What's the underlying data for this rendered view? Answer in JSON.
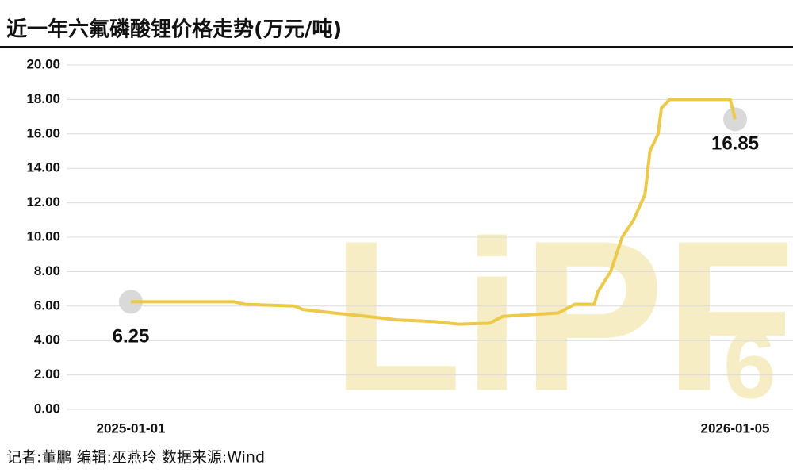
{
  "chart_data": {
    "type": "line",
    "title": "近一年六氟磷酸锂价格走势(万元/吨)",
    "x": [
      "2025-01-01",
      "2025-03-05",
      "2025-03-12",
      "2025-04-11",
      "2025-04-16",
      "2025-05-05",
      "2025-05-25",
      "2025-06-13",
      "2025-07-05",
      "2025-07-20",
      "2025-08-08",
      "2025-08-16",
      "2025-09-19",
      "2025-09-29",
      "2025-10-11",
      "2025-10-13",
      "2025-10-21",
      "2025-10-28",
      "2025-11-04",
      "2025-11-11",
      "2025-11-14",
      "2025-11-19",
      "2025-11-21",
      "2025-11-26",
      "2026-01-02",
      "2026-01-05"
    ],
    "series": [
      {
        "name": "六氟磷酸锂",
        "color": "#ecc94b",
        "values": [
          6.25,
          6.25,
          6.1,
          6.0,
          5.8,
          5.6,
          5.4,
          5.2,
          5.1,
          4.95,
          5.0,
          5.4,
          5.6,
          6.1,
          6.1,
          6.8,
          8.0,
          10.0,
          11.0,
          12.5,
          15.0,
          16.0,
          17.5,
          18.0,
          18.0,
          16.85
        ],
        "value_labels": {
          "0": "6.25",
          "25": "16.85"
        }
      }
    ],
    "xlim": [
      "2025-01-01",
      "2026-01-05"
    ],
    "xticks": [
      "2025-01-01",
      "2026-01-05"
    ],
    "ylim": [
      0,
      20
    ],
    "yticks": [
      {
        "value": 0,
        "label": "0.00"
      },
      {
        "value": 2,
        "label": "2.00"
      },
      {
        "value": 4,
        "label": "4.00"
      },
      {
        "value": 6,
        "label": "6.00"
      },
      {
        "value": 8,
        "label": "8.00"
      },
      {
        "value": 10,
        "label": "10.00"
      },
      {
        "value": 12,
        "label": "12.00"
      },
      {
        "value": 14,
        "label": "14.00"
      },
      {
        "value": 16,
        "label": "16.00"
      },
      {
        "value": 18,
        "label": "18.00"
      },
      {
        "value": 20,
        "label": "20.00"
      }
    ],
    "grid": true,
    "watermark": "LiPF",
    "watermark_sub": "6",
    "footer": "记者:董鹏   编辑:巫燕玲   数据来源:Wind"
  }
}
